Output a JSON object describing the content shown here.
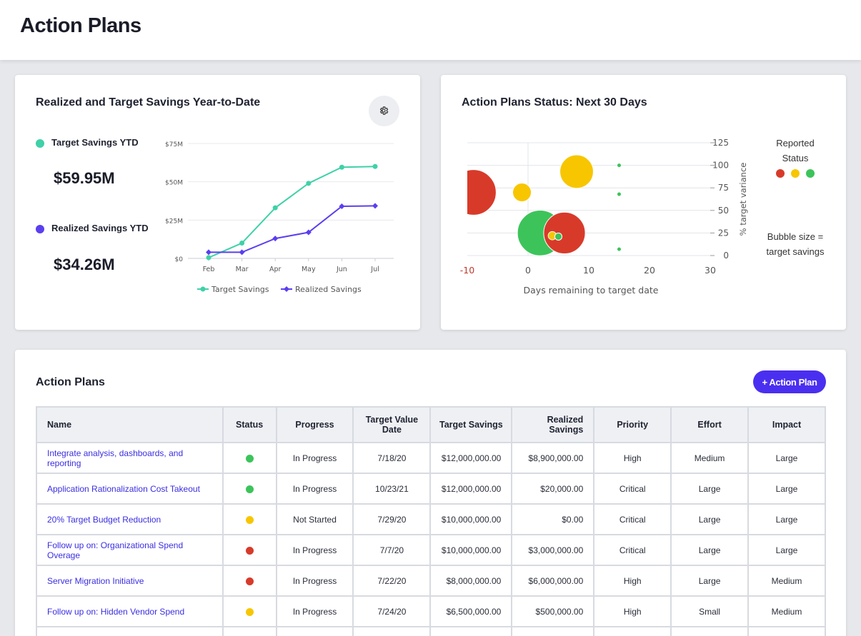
{
  "header": {
    "title": "Action Plans"
  },
  "colors": {
    "target": "#3fd1a8",
    "realized": "#5a3ff0",
    "red": "#d83a2a",
    "yellow": "#f7c600",
    "green": "#3cc45a",
    "accent": "#4a2ff0"
  },
  "savings_card": {
    "title": "Realized and Target Savings Year-to-Date",
    "settings_icon": "gear-icon",
    "target_label": "Target Savings YTD",
    "target_value": "$59.95M",
    "realized_label": "Realized Savings YTD",
    "realized_value": "$34.26M"
  },
  "status_card": {
    "title": "Action Plans Status: Next 30 Days",
    "legend_title_1": "Reported",
    "legend_title_2": "Status",
    "size_note_1": "Bubble size =",
    "size_note_2": "target savings"
  },
  "chart_data": [
    {
      "type": "line",
      "title": "",
      "categories": [
        "Feb",
        "Mar",
        "Apr",
        "May",
        "Jun",
        "Jul"
      ],
      "y_tick_labels": [
        "$0",
        "$25M",
        "$50M",
        "$75M"
      ],
      "ylim": [
        0,
        75
      ],
      "legend_position": "bottom",
      "grid": true,
      "series": [
        {
          "name": "Target Savings",
          "values": [
            0.5,
            10,
            33,
            49,
            59.5,
            60
          ]
        },
        {
          "name": "Realized Savings",
          "values": [
            4,
            4,
            13,
            17,
            34,
            34.3
          ]
        }
      ]
    },
    {
      "type": "scatter",
      "title": "",
      "xlabel": "Days remaining to target date",
      "ylabel": "% target variance",
      "xlim": [
        -10,
        30
      ],
      "ylim": [
        0,
        125
      ],
      "x_tick_labels": [
        "-10",
        "0",
        "10",
        "20",
        "30"
      ],
      "y_tick_labels": [
        "0",
        "25",
        "50",
        "75",
        "100",
        "125"
      ],
      "grid": true,
      "points": [
        {
          "x": -9,
          "y": 70,
          "size": 12,
          "status": "red"
        },
        {
          "x": -1,
          "y": 70,
          "size": 2,
          "status": "yellow"
        },
        {
          "x": 8,
          "y": 93,
          "size": 6.5,
          "status": "yellow"
        },
        {
          "x": 15,
          "y": 100,
          "size": 0.05,
          "status": "green"
        },
        {
          "x": 15,
          "y": 68,
          "size": 0.05,
          "status": "green"
        },
        {
          "x": 2,
          "y": 25,
          "size": 12,
          "status": "green"
        },
        {
          "x": 6,
          "y": 25,
          "size": 10,
          "status": "red"
        },
        {
          "x": 4,
          "y": 22,
          "size": 0.4,
          "status": "yellow"
        },
        {
          "x": 5,
          "y": 21,
          "size": 0.3,
          "status": "green"
        },
        {
          "x": 15,
          "y": 7,
          "size": 0.05,
          "status": "green"
        }
      ]
    }
  ],
  "plans": {
    "title": "Action Plans",
    "add_label": "+ Action Plan",
    "columns": [
      "Name",
      "Status",
      "Progress",
      "Target Value Date",
      "Target Savings",
      "Realized Savings",
      "Priority",
      "Effort",
      "Impact"
    ],
    "rows": [
      {
        "name": "Integrate analysis, dashboards, and reporting",
        "status": "green",
        "progress": "In Progress",
        "date": "7/18/20",
        "target": "$12,000,000.00",
        "realized": "$8,900,000.00",
        "priority": "High",
        "effort": "Medium",
        "impact": "Large"
      },
      {
        "name": "Application Rationalization Cost Takeout",
        "status": "green",
        "progress": "In Progress",
        "date": "10/23/21",
        "target": "$12,000,000.00",
        "realized": "$20,000.00",
        "priority": "Critical",
        "effort": "Large",
        "impact": "Large"
      },
      {
        "name": "20% Target Budget Reduction",
        "status": "yellow",
        "progress": "Not Started",
        "date": "7/29/20",
        "target": "$10,000,000.00",
        "realized": "$0.00",
        "priority": "Critical",
        "effort": "Large",
        "impact": "Large"
      },
      {
        "name": "Follow up on: Organizational Spend Overage",
        "status": "red",
        "progress": "In Progress",
        "date": "7/7/20",
        "target": "$10,000,000.00",
        "realized": "$3,000,000.00",
        "priority": "Critical",
        "effort": "Large",
        "impact": "Large"
      },
      {
        "name": "Server Migration Initiative",
        "status": "red",
        "progress": "In Progress",
        "date": "7/22/20",
        "target": "$8,000,000.00",
        "realized": "$6,000,000.00",
        "priority": "High",
        "effort": "Large",
        "impact": "Medium"
      },
      {
        "name": "Follow up on: Hidden Vendor Spend",
        "status": "yellow",
        "progress": "In Progress",
        "date": "7/24/20",
        "target": "$6,500,000.00",
        "realized": "$500,000.00",
        "priority": "High",
        "effort": "Small",
        "impact": "Medium"
      }
    ]
  }
}
